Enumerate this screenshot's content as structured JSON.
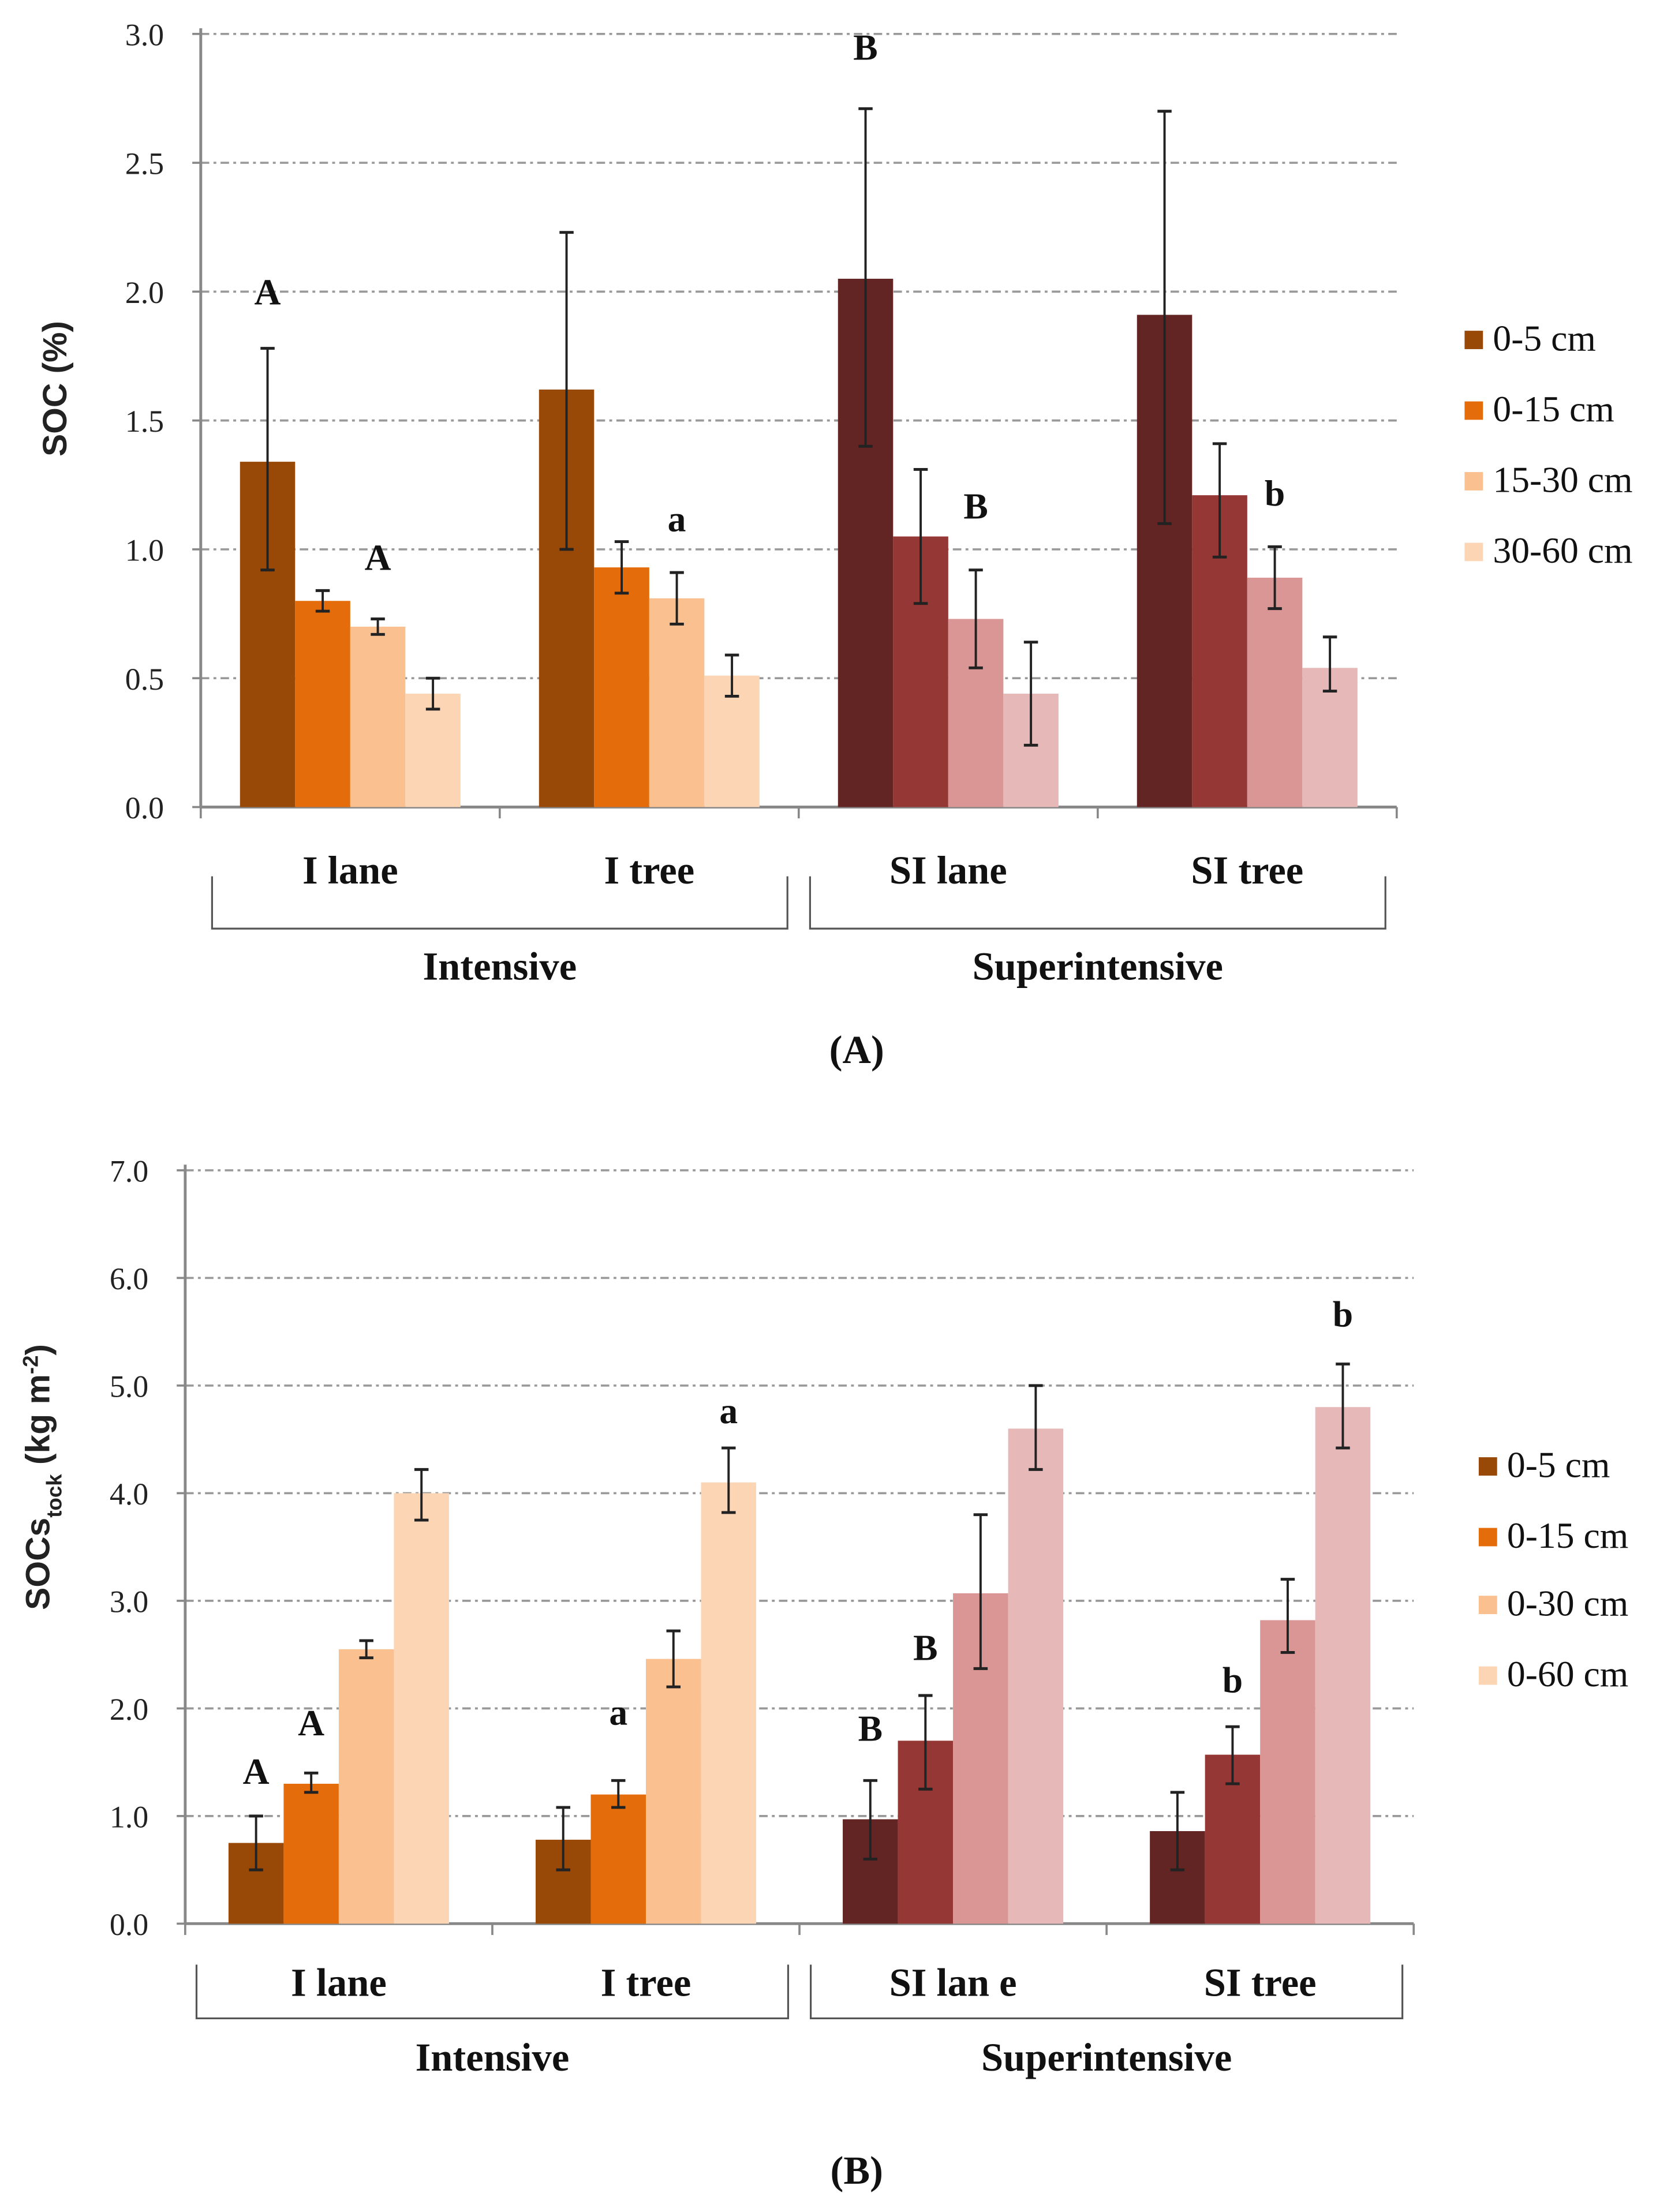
{
  "colors": {
    "intensive": [
      "#984807",
      "#E46C0A",
      "#FAC090",
      "#FCD5B5"
    ],
    "superintensive": [
      "#632523",
      "#953735",
      "#D99694",
      "#E6B9B8"
    ]
  },
  "chart_data": [
    {
      "type": "bar",
      "panel_label": "(A)",
      "ylabel": "SOC  (%)",
      "ylim": [
        0,
        3.0
      ],
      "yticks": [
        "0.0",
        "0.5",
        "1.0",
        "1.5",
        "2.0",
        "2.5",
        "3.0"
      ],
      "grid": true,
      "categories": [
        "I lane",
        "I tree",
        "SI lane",
        "SI tree"
      ],
      "category_groups": [
        {
          "label": "Intensive",
          "categories": [
            "I lane",
            "I tree"
          ]
        },
        {
          "label": "Superintensive",
          "categories": [
            "SI lane",
            "SI tree"
          ]
        }
      ],
      "legend": {
        "placement": "right",
        "entries": [
          "0-5 cm",
          "0-15 cm",
          "15-30 cm",
          "30-60 cm"
        ]
      },
      "series": [
        {
          "name": "0-5 cm",
          "values": [
            1.34,
            1.62,
            2.05,
            1.91
          ],
          "err_low": [
            0.92,
            1.0,
            1.4,
            1.1
          ],
          "err_high": [
            1.78,
            2.23,
            2.71,
            2.7
          ]
        },
        {
          "name": "0-15 cm",
          "values": [
            0.8,
            0.93,
            1.05,
            1.21
          ],
          "err_low": [
            0.76,
            0.83,
            0.79,
            0.97
          ],
          "err_high": [
            0.84,
            1.03,
            1.31,
            1.41
          ]
        },
        {
          "name": "15-30 cm",
          "values": [
            0.7,
            0.81,
            0.73,
            0.89
          ],
          "err_low": [
            0.67,
            0.71,
            0.54,
            0.77
          ],
          "err_high": [
            0.73,
            0.91,
            0.92,
            1.01
          ]
        },
        {
          "name": "30-60 cm",
          "values": [
            0.44,
            0.51,
            0.44,
            0.54
          ],
          "err_low": [
            0.38,
            0.43,
            0.24,
            0.45
          ],
          "err_high": [
            0.5,
            0.59,
            0.64,
            0.66
          ]
        }
      ],
      "annotations": [
        {
          "text": "A",
          "category": 0,
          "series": 0,
          "y": 1.95
        },
        {
          "text": "A",
          "category": 0,
          "series": 2,
          "y": 0.92
        },
        {
          "text": "a",
          "category": 1,
          "series": 2,
          "y": 1.07
        },
        {
          "text": "B",
          "category": 2,
          "series": 0,
          "y": 2.9
        },
        {
          "text": "B",
          "category": 2,
          "series": 2,
          "y": 1.12
        },
        {
          "text": "b",
          "category": 3,
          "series": 2,
          "y": 1.17
        }
      ]
    },
    {
      "type": "bar",
      "panel_label": "(B)",
      "ylabel": "SOCs",
      "ylabel_sub": "tock",
      "ylabel_units": "(kg m",
      "ylabel_sup": "-2",
      "ylabel_end": ")",
      "ylim": [
        0,
        7.0
      ],
      "yticks": [
        "0.0",
        "1.0",
        "2.0",
        "3.0",
        "4.0",
        "5.0",
        "6.0",
        "7.0"
      ],
      "grid": true,
      "categories": [
        "I lane",
        "I tree",
        "SI lan e",
        "SI tree"
      ],
      "category_groups": [
        {
          "label": "Intensive",
          "categories": [
            "I lane",
            "I tree"
          ]
        },
        {
          "label": "Superintensive",
          "categories": [
            "SI lan e",
            "SI tree"
          ]
        }
      ],
      "legend": {
        "placement": "right",
        "entries": [
          "0-5 cm",
          "0-15 cm",
          "0-30 cm",
          "0-60 cm"
        ]
      },
      "series": [
        {
          "name": "0-5 cm",
          "values": [
            0.75,
            0.78,
            0.97,
            0.86
          ],
          "err_low": [
            0.5,
            0.5,
            0.6,
            0.5
          ],
          "err_high": [
            1.0,
            1.08,
            1.33,
            1.22
          ]
        },
        {
          "name": "0-15 cm",
          "values": [
            1.3,
            1.2,
            1.7,
            1.57
          ],
          "err_low": [
            1.22,
            1.08,
            1.25,
            1.3
          ],
          "err_high": [
            1.4,
            1.33,
            2.12,
            1.83
          ]
        },
        {
          "name": "0-30 cm",
          "values": [
            2.55,
            2.46,
            3.07,
            2.82
          ],
          "err_low": [
            2.47,
            2.2,
            2.37,
            2.52
          ],
          "err_high": [
            2.63,
            2.72,
            3.8,
            3.2
          ]
        },
        {
          "name": "0-60 cm",
          "values": [
            4.0,
            4.1,
            4.6,
            4.8
          ],
          "err_low": [
            3.75,
            3.82,
            4.22,
            4.42
          ],
          "err_high": [
            4.22,
            4.42,
            5.0,
            5.2
          ]
        }
      ],
      "annotations": [
        {
          "text": "A",
          "category": 0,
          "series": 0,
          "y": 1.3
        },
        {
          "text": "A",
          "category": 0,
          "series": 1,
          "y": 1.75
        },
        {
          "text": "a",
          "category": 1,
          "series": 1,
          "y": 1.85
        },
        {
          "text": "a",
          "category": 1,
          "series": 3,
          "y": 4.65
        },
        {
          "text": "B",
          "category": 2,
          "series": 0,
          "y": 1.7
        },
        {
          "text": "B",
          "category": 2,
          "series": 1,
          "y": 2.45
        },
        {
          "text": "b",
          "category": 3,
          "series": 1,
          "y": 2.15
        },
        {
          "text": "b",
          "category": 3,
          "series": 3,
          "y": 5.55
        }
      ]
    }
  ]
}
